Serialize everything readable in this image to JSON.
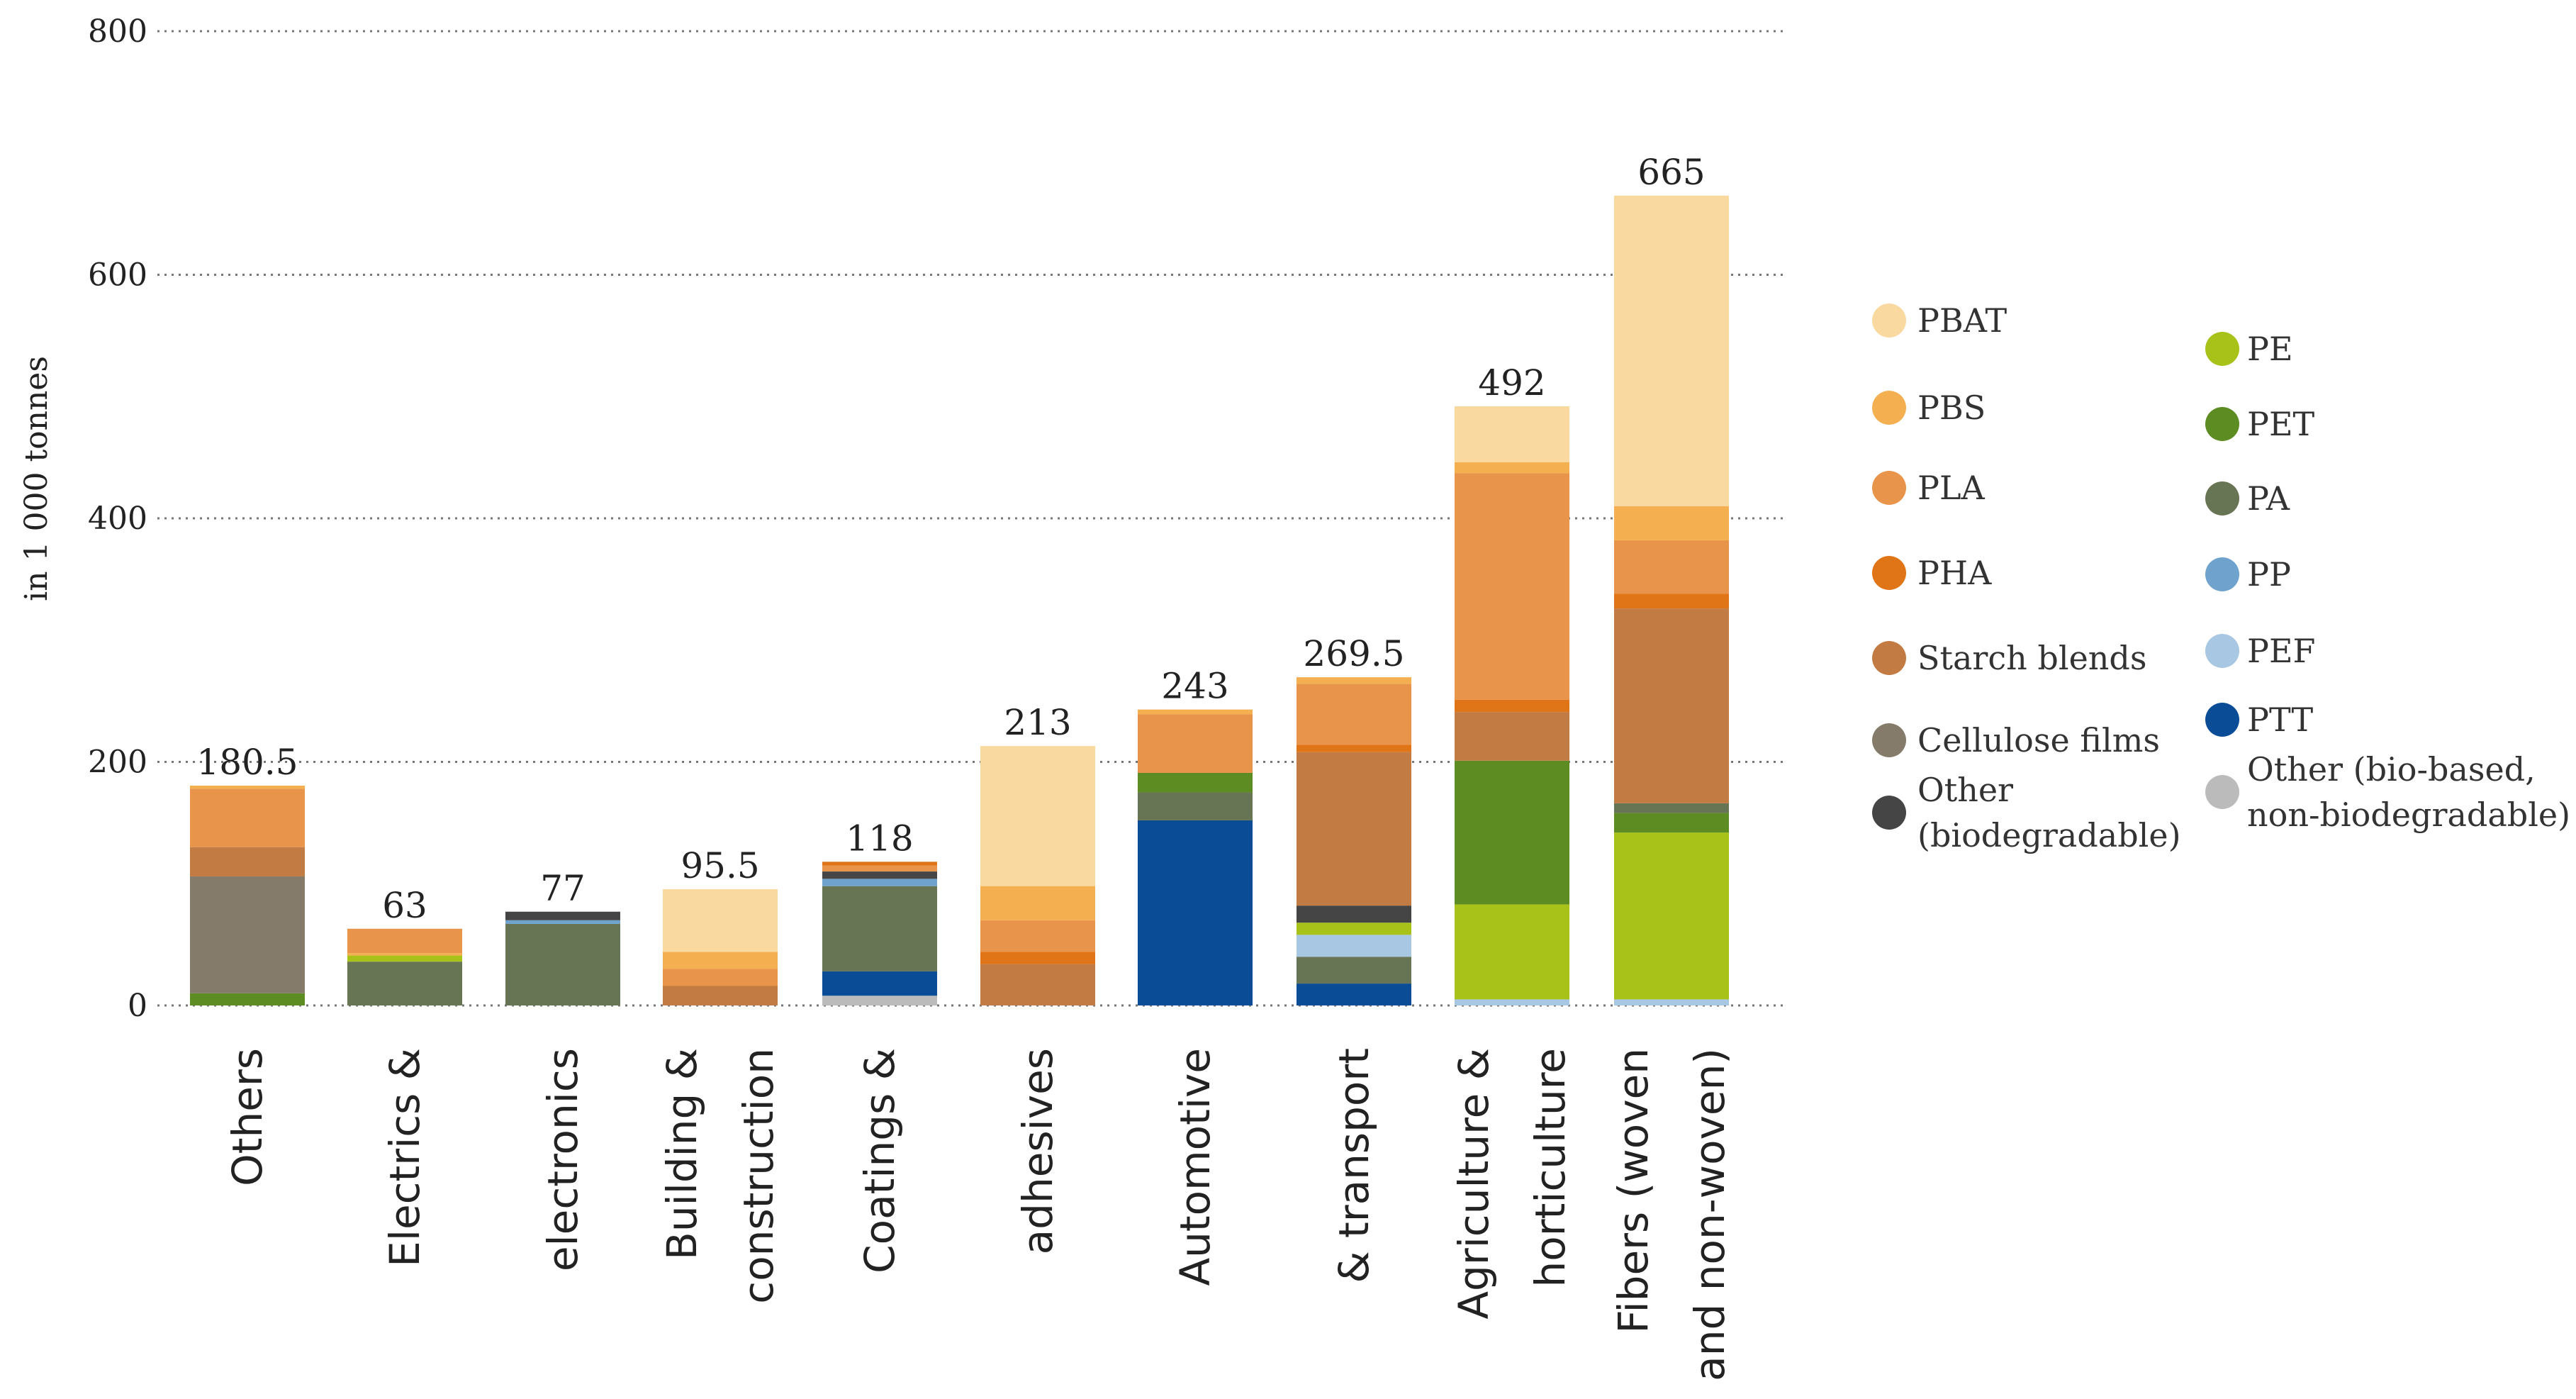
{
  "chart_data": {
    "type": "bar",
    "stacked": true,
    "title": "",
    "xlabel": "",
    "ylabel": "in 1 000 tonnes",
    "ylim": [
      0,
      800
    ],
    "yticks": [
      0,
      200,
      400,
      600,
      800
    ],
    "grid": true,
    "legend_position": "right",
    "categories": [
      {
        "label_lines": [
          "Others"
        ],
        "total_label": "180.5"
      },
      {
        "label_lines": [
          "Electrics &",
          "electronics"
        ],
        "total_label": "63",
        "total_label_2": "77"
      },
      {
        "label_lines": [
          "Building &",
          "construction"
        ],
        "total_label": "95.5"
      },
      {
        "label_lines": [
          "Coatings &",
          "adhesives"
        ],
        "total_label": "118",
        "total_label_2": "213"
      },
      {
        "label_lines": [
          "Automotive",
          "& transport"
        ],
        "total_label": "243",
        "total_label_2": "269.5"
      },
      {
        "label_lines": [
          "Agriculture &",
          "horticulture"
        ],
        "total_label": "492"
      },
      {
        "label_lines": [
          "Fibers (woven",
          "and non-woven)"
        ],
        "total_label": "665"
      }
    ],
    "bars": [
      {
        "category": 0,
        "total": 180.5,
        "segments": [
          {
            "material": "PET",
            "value": 10
          },
          {
            "material": "Cellulose films",
            "value": 96
          },
          {
            "material": "Starch blends",
            "value": 24
          },
          {
            "material": "PLA",
            "value": 48
          },
          {
            "material": "PBS",
            "value": 2.5
          }
        ]
      },
      {
        "category": 1,
        "total": 63,
        "segments": [
          {
            "material": "PA",
            "value": 36
          },
          {
            "material": "PE",
            "value": 5
          },
          {
            "material": "PBS",
            "value": 2
          },
          {
            "material": "PLA",
            "value": 20
          }
        ]
      },
      {
        "category": 1,
        "total": 77,
        "segments": [
          {
            "material": "PA",
            "value": 67
          },
          {
            "material": "PP",
            "value": 3
          },
          {
            "material": "Other (biodegradable)",
            "value": 7
          }
        ]
      },
      {
        "category": 2,
        "total": 95.5,
        "segments": [
          {
            "material": "Starch blends",
            "value": 16
          },
          {
            "material": "PLA",
            "value": 14
          },
          {
            "material": "PBS",
            "value": 14
          },
          {
            "material": "PBAT",
            "value": 51.5
          }
        ]
      },
      {
        "category": 3,
        "total": 118,
        "segments": [
          {
            "material": "Other (bio-based, non-biodegradable)",
            "value": 8
          },
          {
            "material": "PTT",
            "value": 20
          },
          {
            "material": "PA",
            "value": 70
          },
          {
            "material": "PP",
            "value": 6
          },
          {
            "material": "Other (biodegradable)",
            "value": 6
          },
          {
            "material": "PLA",
            "value": 5
          },
          {
            "material": "PHA",
            "value": 3
          }
        ]
      },
      {
        "category": 3,
        "total": 213,
        "segments": [
          {
            "material": "Starch blends",
            "value": 34
          },
          {
            "material": "PHA",
            "value": 10
          },
          {
            "material": "PLA",
            "value": 26
          },
          {
            "material": "PBS",
            "value": 28
          },
          {
            "material": "PBAT",
            "value": 115
          }
        ]
      },
      {
        "category": 4,
        "total": 243,
        "segments": [
          {
            "material": "PTT",
            "value": 152
          },
          {
            "material": "PA",
            "value": 23
          },
          {
            "material": "PET",
            "value": 16
          },
          {
            "material": "PLA",
            "value": 48
          },
          {
            "material": "PBS",
            "value": 4
          }
        ]
      },
      {
        "category": 4,
        "total": 269.5,
        "segments": [
          {
            "material": "PTT",
            "value": 18
          },
          {
            "material": "PA",
            "value": 22
          },
          {
            "material": "PEF",
            "value": 18
          },
          {
            "material": "PE",
            "value": 10
          },
          {
            "material": "Other (biodegradable)",
            "value": 14
          },
          {
            "material": "Starch blends",
            "value": 126
          },
          {
            "material": "PHA",
            "value": 6
          },
          {
            "material": "PLA",
            "value": 50
          },
          {
            "material": "PBS",
            "value": 5.5
          }
        ]
      },
      {
        "category": 5,
        "total": 492,
        "segments": [
          {
            "material": "PEF",
            "value": 5
          },
          {
            "material": "PE",
            "value": 78
          },
          {
            "material": "PET",
            "value": 118
          },
          {
            "material": "Starch blends",
            "value": 40
          },
          {
            "material": "PHA",
            "value": 10
          },
          {
            "material": "PLA",
            "value": 186
          },
          {
            "material": "PBS",
            "value": 9
          },
          {
            "material": "PBAT",
            "value": 46
          }
        ]
      },
      {
        "category": 6,
        "total": 665,
        "segments": [
          {
            "material": "PEF",
            "value": 5
          },
          {
            "material": "PE",
            "value": 137
          },
          {
            "material": "PET",
            "value": 16
          },
          {
            "material": "PA",
            "value": 8
          },
          {
            "material": "Starch blends",
            "value": 160
          },
          {
            "material": "PHA",
            "value": 12
          },
          {
            "material": "PLA",
            "value": 44
          },
          {
            "material": "PBS",
            "value": 28
          },
          {
            "material": "PBAT",
            "value": 255
          }
        ]
      }
    ],
    "legend": [
      {
        "label_lines": [
          "PBAT"
        ],
        "color": "#FAD9A1"
      },
      {
        "label_lines": [
          "PBS"
        ],
        "color": "#F4B050"
      },
      {
        "label_lines": [
          "PLA"
        ],
        "color": "#E8944A"
      },
      {
        "label_lines": [
          "PHA"
        ],
        "color": "#E07518"
      },
      {
        "label_lines": [
          "Starch blends"
        ],
        "color": "#C27C43"
      },
      {
        "label_lines": [
          "Cellulose films"
        ],
        "color": "#857B6B"
      },
      {
        "label_lines": [
          "Other",
          "(biodegradable)"
        ],
        "color": "#454545"
      },
      {
        "label_lines": [
          "PE"
        ],
        "color": "#A8C219"
      },
      {
        "label_lines": [
          "PET"
        ],
        "color": "#5C8C22"
      },
      {
        "label_lines": [
          "PA"
        ],
        "color": "#687554"
      },
      {
        "label_lines": [
          "PP"
        ],
        "color": "#6FA3CE"
      },
      {
        "label_lines": [
          "PEF"
        ],
        "color": "#A8C7E2"
      },
      {
        "label_lines": [
          "PTT"
        ],
        "color": "#0A4C96"
      },
      {
        "label_lines": [
          "Other (bio-based,",
          "non-biodegradable)"
        ],
        "color": "#BBBBBB"
      }
    ]
  }
}
